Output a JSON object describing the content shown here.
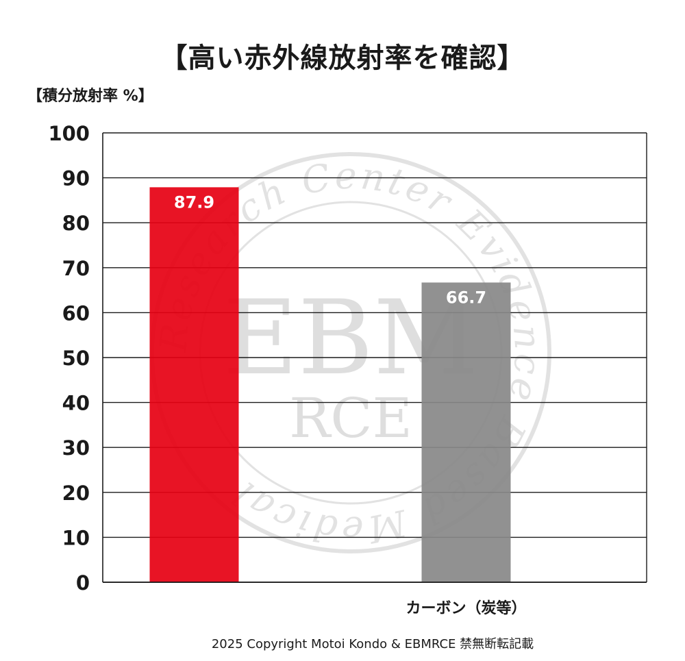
{
  "chart_data": {
    "type": "bar",
    "title": "【高い赤外線放射率を確認】",
    "ylabel": "【積分放射率 %】",
    "categories": [
      "",
      "カーボン（炭等）"
    ],
    "values": [
      87.9,
      66.7
    ],
    "data_labels": [
      "87.9",
      "66.7"
    ],
    "bar_colors": [
      "#e60012",
      "#888888"
    ],
    "ylim": [
      0,
      100
    ],
    "yticks": [
      0,
      10,
      20,
      30,
      40,
      50,
      60,
      70,
      80,
      90,
      100
    ],
    "grid": true,
    "watermark": {
      "center": "EBM",
      "sub": "RCE",
      "ring": "Research Center Evidence Based Medical"
    }
  },
  "footer": {
    "copyright": "2025 Copyright Motoi Kondo & EBMRCE 禁無断転記載"
  }
}
